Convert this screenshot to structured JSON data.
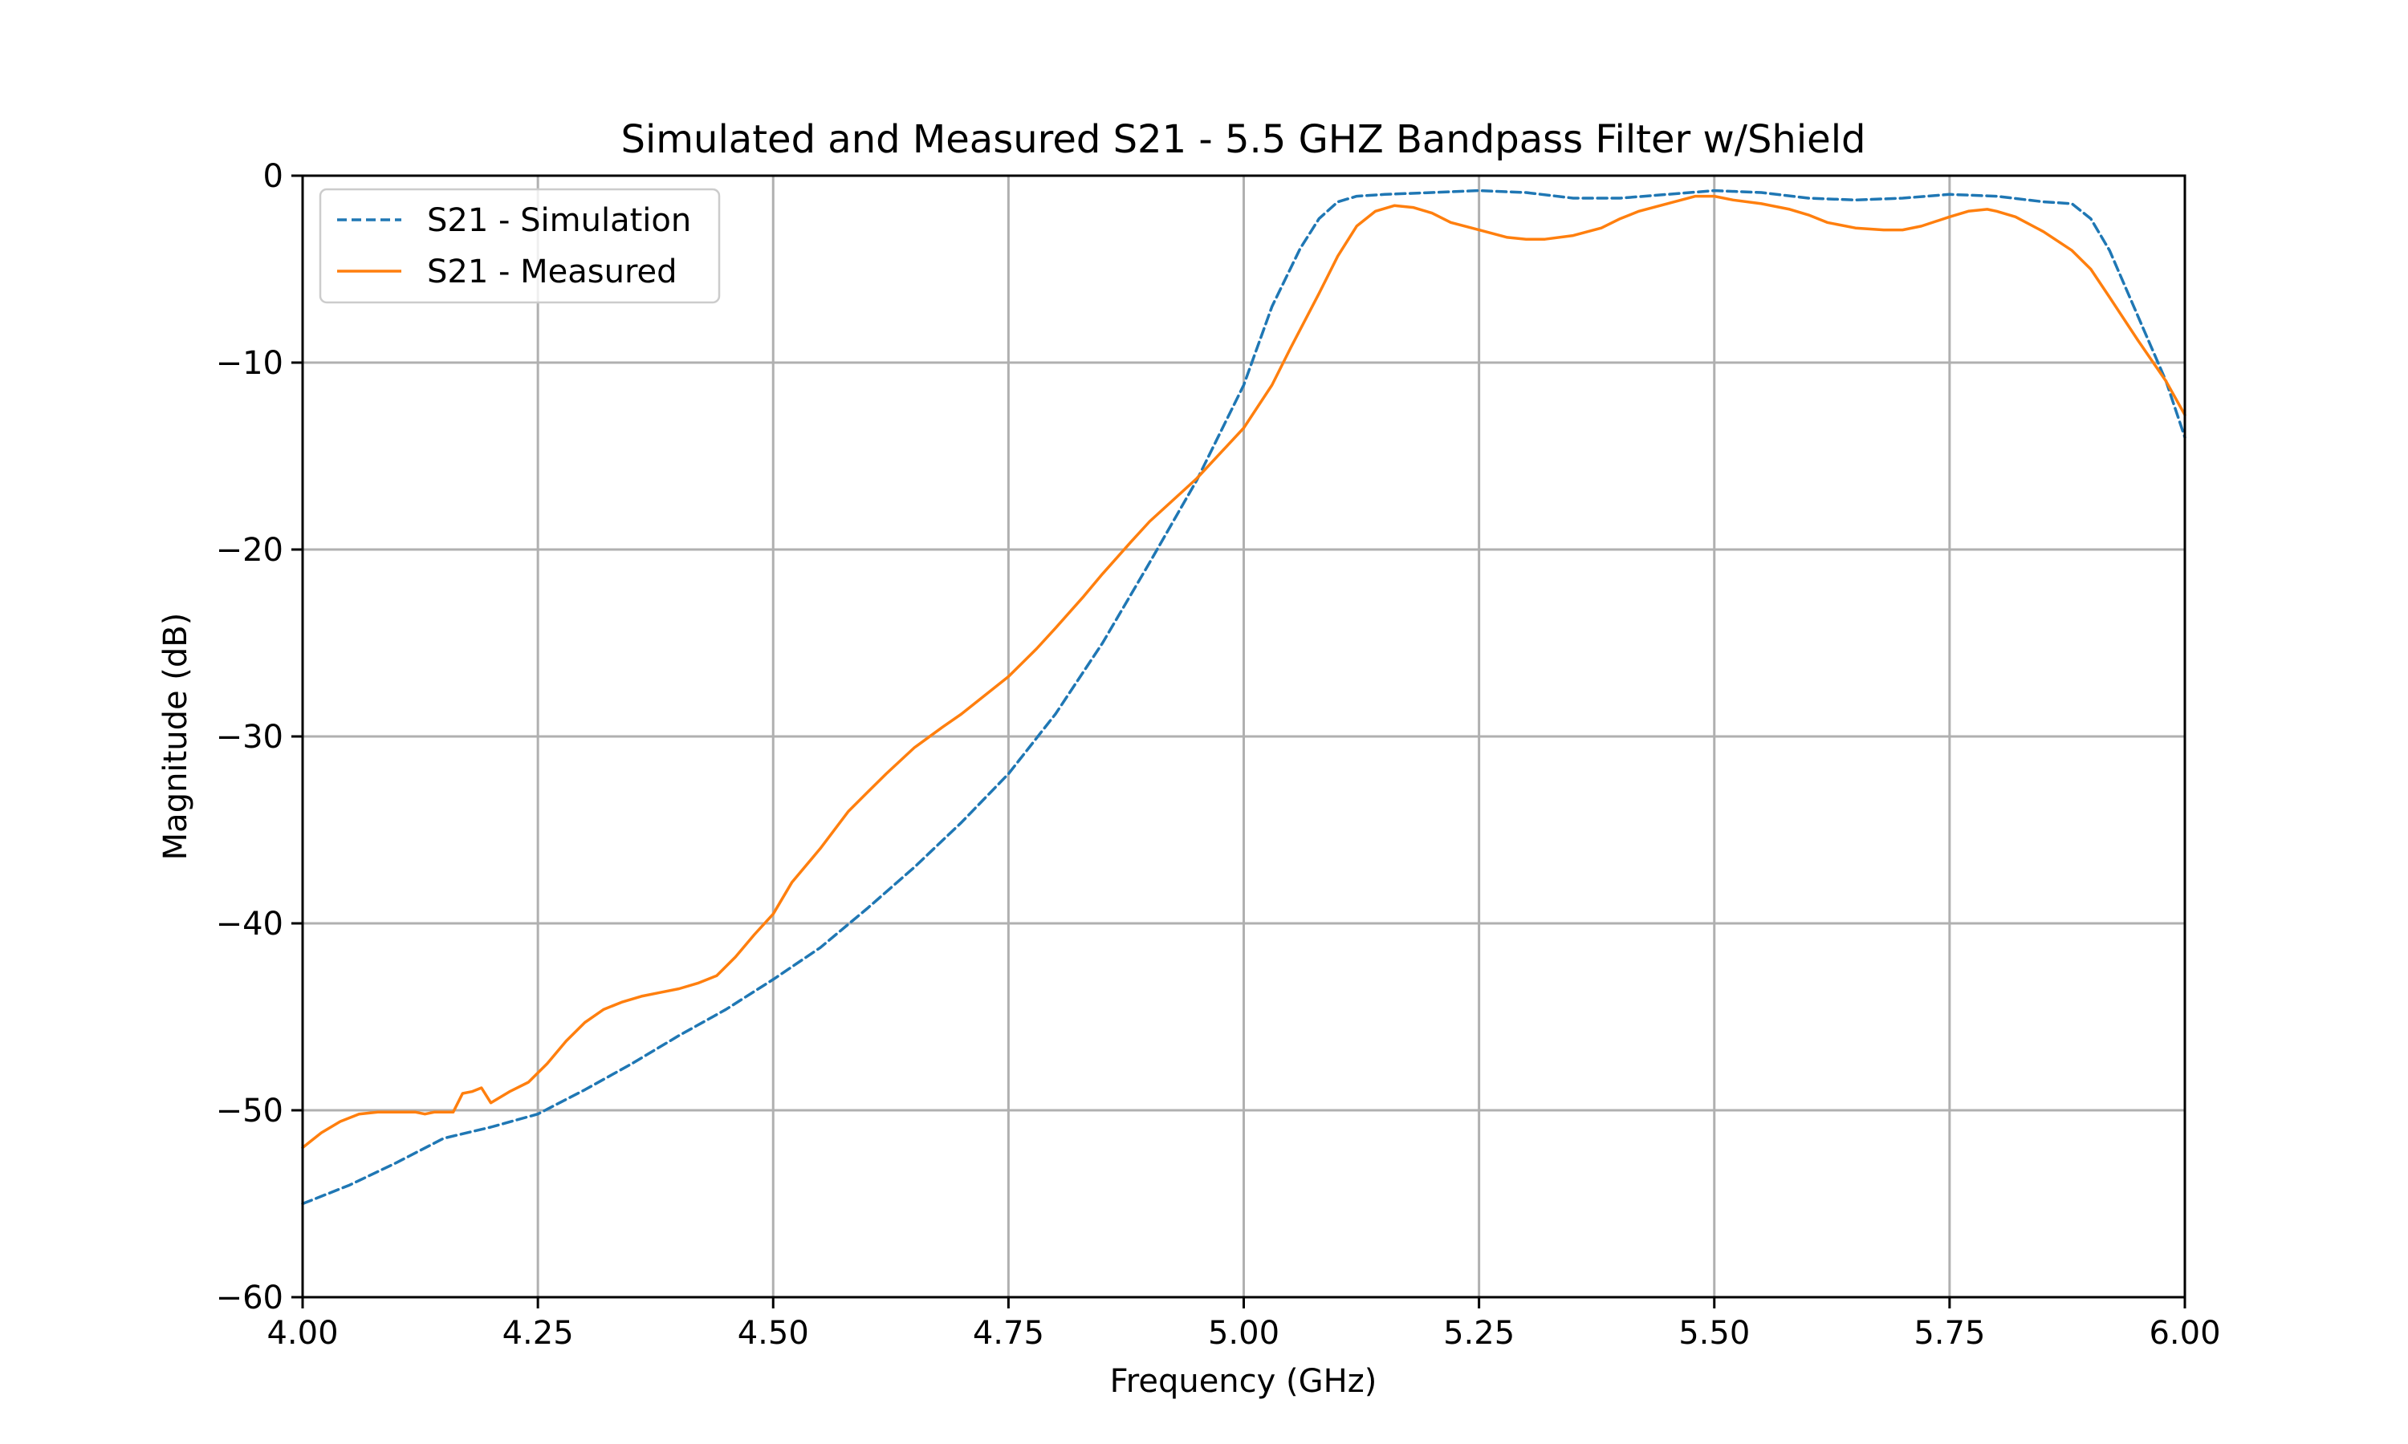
{
  "chart_data": {
    "type": "line",
    "title": "Simulated and Measured S21 - 5.5 GHZ Bandpass Filter w/Shield",
    "xlabel": "Frequency (GHz)",
    "ylabel": "Magnitude (dB)",
    "xlim": [
      4.0,
      6.0
    ],
    "ylim": [
      -60,
      0
    ],
    "xticks": [
      4.0,
      4.25,
      4.5,
      4.75,
      5.0,
      5.25,
      5.5,
      5.75,
      6.0
    ],
    "xtick_labels": [
      "4.00",
      "4.25",
      "4.50",
      "4.75",
      "5.00",
      "5.25",
      "5.50",
      "5.75",
      "6.00"
    ],
    "yticks": [
      0,
      -10,
      -20,
      -30,
      -40,
      -50,
      -60
    ],
    "ytick_labels": [
      "0",
      "−10",
      "−20",
      "−30",
      "−40",
      "−50",
      "−60"
    ],
    "grid": true,
    "legend_position": "upper-left",
    "series": [
      {
        "name": "S21 - Simulation",
        "color": "#1f77b4",
        "style": "dashed",
        "x": [
          4.0,
          4.05,
          4.1,
          4.15,
          4.2,
          4.25,
          4.3,
          4.35,
          4.4,
          4.45,
          4.5,
          4.55,
          4.6,
          4.65,
          4.7,
          4.75,
          4.8,
          4.85,
          4.9,
          4.95,
          5.0,
          5.03,
          5.06,
          5.08,
          5.1,
          5.12,
          5.15,
          5.2,
          5.25,
          5.3,
          5.35,
          5.4,
          5.45,
          5.5,
          5.55,
          5.6,
          5.65,
          5.7,
          5.75,
          5.8,
          5.85,
          5.88,
          5.9,
          5.92,
          5.95,
          5.98,
          6.0
        ],
        "y": [
          -55.0,
          -54.0,
          -52.8,
          -51.5,
          -50.9,
          -50.2,
          -48.9,
          -47.5,
          -46.0,
          -44.6,
          -43.0,
          -41.3,
          -39.2,
          -37.0,
          -34.6,
          -32.0,
          -28.8,
          -25.0,
          -20.7,
          -16.3,
          -11.2,
          -7.0,
          -3.9,
          -2.3,
          -1.4,
          -1.1,
          -1.0,
          -0.9,
          -0.8,
          -0.9,
          -1.2,
          -1.2,
          -1.0,
          -0.8,
          -0.9,
          -1.2,
          -1.3,
          -1.2,
          -1.0,
          -1.1,
          -1.4,
          -1.5,
          -2.3,
          -4.0,
          -7.5,
          -11.0,
          -14.0
        ]
      },
      {
        "name": "S21 - Measured",
        "color": "#ff7f0e",
        "style": "solid",
        "x": [
          4.0,
          4.02,
          4.04,
          4.06,
          4.08,
          4.1,
          4.12,
          4.13,
          4.14,
          4.16,
          4.17,
          4.18,
          4.19,
          4.2,
          4.22,
          4.24,
          4.26,
          4.28,
          4.3,
          4.32,
          4.34,
          4.36,
          4.38,
          4.4,
          4.42,
          4.44,
          4.46,
          4.48,
          4.5,
          4.52,
          4.55,
          4.58,
          4.6,
          4.62,
          4.65,
          4.68,
          4.7,
          4.72,
          4.75,
          4.78,
          4.8,
          4.83,
          4.85,
          4.88,
          4.9,
          4.95,
          5.0,
          5.03,
          5.05,
          5.08,
          5.1,
          5.12,
          5.14,
          5.16,
          5.18,
          5.2,
          5.22,
          5.25,
          5.28,
          5.3,
          5.32,
          5.35,
          5.38,
          5.4,
          5.42,
          5.45,
          5.48,
          5.5,
          5.52,
          5.55,
          5.58,
          5.6,
          5.62,
          5.65,
          5.68,
          5.7,
          5.72,
          5.75,
          5.77,
          5.79,
          5.8,
          5.82,
          5.85,
          5.88,
          5.9,
          5.92,
          5.95,
          5.98,
          6.0
        ],
        "y": [
          -52.0,
          -51.2,
          -50.6,
          -50.2,
          -50.1,
          -50.1,
          -50.1,
          -50.2,
          -50.1,
          -50.1,
          -49.1,
          -49.0,
          -48.8,
          -49.6,
          -49.0,
          -48.5,
          -47.5,
          -46.3,
          -45.3,
          -44.6,
          -44.2,
          -43.9,
          -43.7,
          -43.5,
          -43.2,
          -42.8,
          -41.8,
          -40.6,
          -39.5,
          -37.8,
          -36.0,
          -34.0,
          -33.0,
          -32.0,
          -30.6,
          -29.5,
          -28.8,
          -28.0,
          -26.8,
          -25.3,
          -24.2,
          -22.5,
          -21.3,
          -19.6,
          -18.5,
          -16.2,
          -13.5,
          -11.2,
          -9.2,
          -6.3,
          -4.3,
          -2.7,
          -1.9,
          -1.6,
          -1.7,
          -2.0,
          -2.5,
          -2.9,
          -3.3,
          -3.4,
          -3.4,
          -3.2,
          -2.8,
          -2.3,
          -1.9,
          -1.5,
          -1.1,
          -1.1,
          -1.3,
          -1.5,
          -1.8,
          -2.1,
          -2.5,
          -2.8,
          -2.9,
          -2.9,
          -2.7,
          -2.2,
          -1.9,
          -1.8,
          -1.9,
          -2.2,
          -3.0,
          -4.0,
          -5.0,
          -6.5,
          -8.8,
          -11.0,
          -12.8
        ]
      }
    ]
  }
}
